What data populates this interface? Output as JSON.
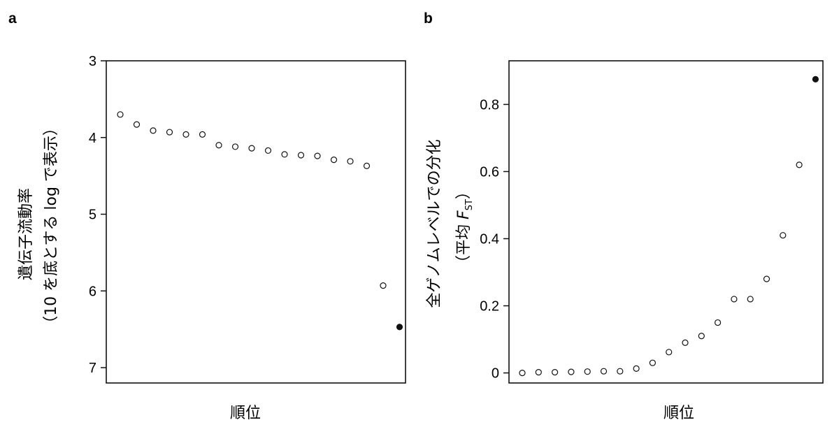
{
  "chart_data": [
    {
      "panel_label": "a",
      "type": "scatter",
      "xlabel": "順位",
      "ylabel_line1": "遺伝子流動率",
      "ylabel_line2": "（10 を底とする log で表示）",
      "y_inverted": true,
      "ylim": [
        3,
        7.2
      ],
      "yticks": [
        "3",
        "4",
        "5",
        "6",
        "7"
      ],
      "x": [
        1,
        2,
        3,
        4,
        5,
        6,
        7,
        8,
        9,
        10,
        11,
        12,
        13,
        14,
        15,
        16,
        17,
        18
      ],
      "y": [
        3.7,
        3.83,
        3.91,
        3.93,
        3.96,
        3.96,
        4.1,
        4.12,
        4.14,
        4.17,
        4.22,
        4.23,
        4.24,
        4.29,
        4.31,
        4.37,
        5.93,
        6.47
      ],
      "filled": [
        false,
        false,
        false,
        false,
        false,
        false,
        false,
        false,
        false,
        false,
        false,
        false,
        false,
        false,
        false,
        false,
        false,
        true
      ]
    },
    {
      "panel_label": "b",
      "type": "scatter",
      "xlabel": "順位",
      "ylabel_line1": "全ゲノムレベルでの分化",
      "ylabel_line2_prefix": "（平均 ",
      "ylabel_line2_var": "F",
      "ylabel_line2_sub": "ST",
      "ylabel_line2_suffix": "）",
      "ylim": [
        -0.03,
        0.93
      ],
      "yticks": [
        "0",
        "0.2",
        "0.4",
        "0.6",
        "0.8"
      ],
      "x": [
        1,
        2,
        3,
        4,
        5,
        6,
        7,
        8,
        9,
        10,
        11,
        12,
        13,
        14,
        15,
        16,
        17,
        18,
        19
      ],
      "y": [
        0,
        0.002,
        0.002,
        0.003,
        0.004,
        0.005,
        0.005,
        0.013,
        0.03,
        0.062,
        0.09,
        0.11,
        0.15,
        0.22,
        0.22,
        0.28,
        0.41,
        0.62,
        0.875
      ],
      "filled": [
        false,
        false,
        false,
        false,
        false,
        false,
        false,
        false,
        false,
        false,
        false,
        false,
        false,
        false,
        false,
        false,
        false,
        false,
        true
      ]
    }
  ]
}
